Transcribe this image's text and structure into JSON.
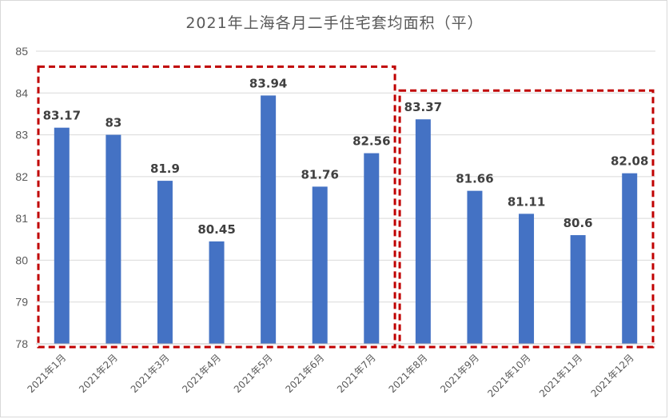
{
  "chart_data": {
    "type": "bar",
    "title": "2021年上海各月二手住宅套均面积（平）",
    "categories": [
      "2021年1月",
      "2021年2月",
      "2021年3月",
      "2021年4月",
      "2021年5月",
      "2021年6月",
      "2021年7月",
      "2021年8月",
      "2021年9月",
      "2021年10月",
      "2021年11月",
      "2021年12月"
    ],
    "series": [
      {
        "values": [
          83.17,
          83,
          81.9,
          80.45,
          83.94,
          81.76,
          82.56,
          83.37,
          81.66,
          81.11,
          80.6,
          82.08
        ]
      }
    ],
    "data_labels": [
      "83.17",
      "83",
      "81.9",
      "80.45",
      "83.94",
      "81.76",
      "82.56",
      "83.37",
      "81.66",
      "81.11",
      "80.6",
      "82.08"
    ],
    "ylim": [
      78,
      85
    ],
    "yticks": [
      78,
      79,
      80,
      81,
      82,
      83,
      84,
      85
    ],
    "grid": true,
    "bar_color": "#4472c4",
    "highlight_color": "#c00000",
    "highlight_groups": [
      {
        "from": "2021年1月",
        "to": "2021年7月"
      },
      {
        "from": "2021年8月",
        "to": "2021年12月"
      }
    ]
  }
}
